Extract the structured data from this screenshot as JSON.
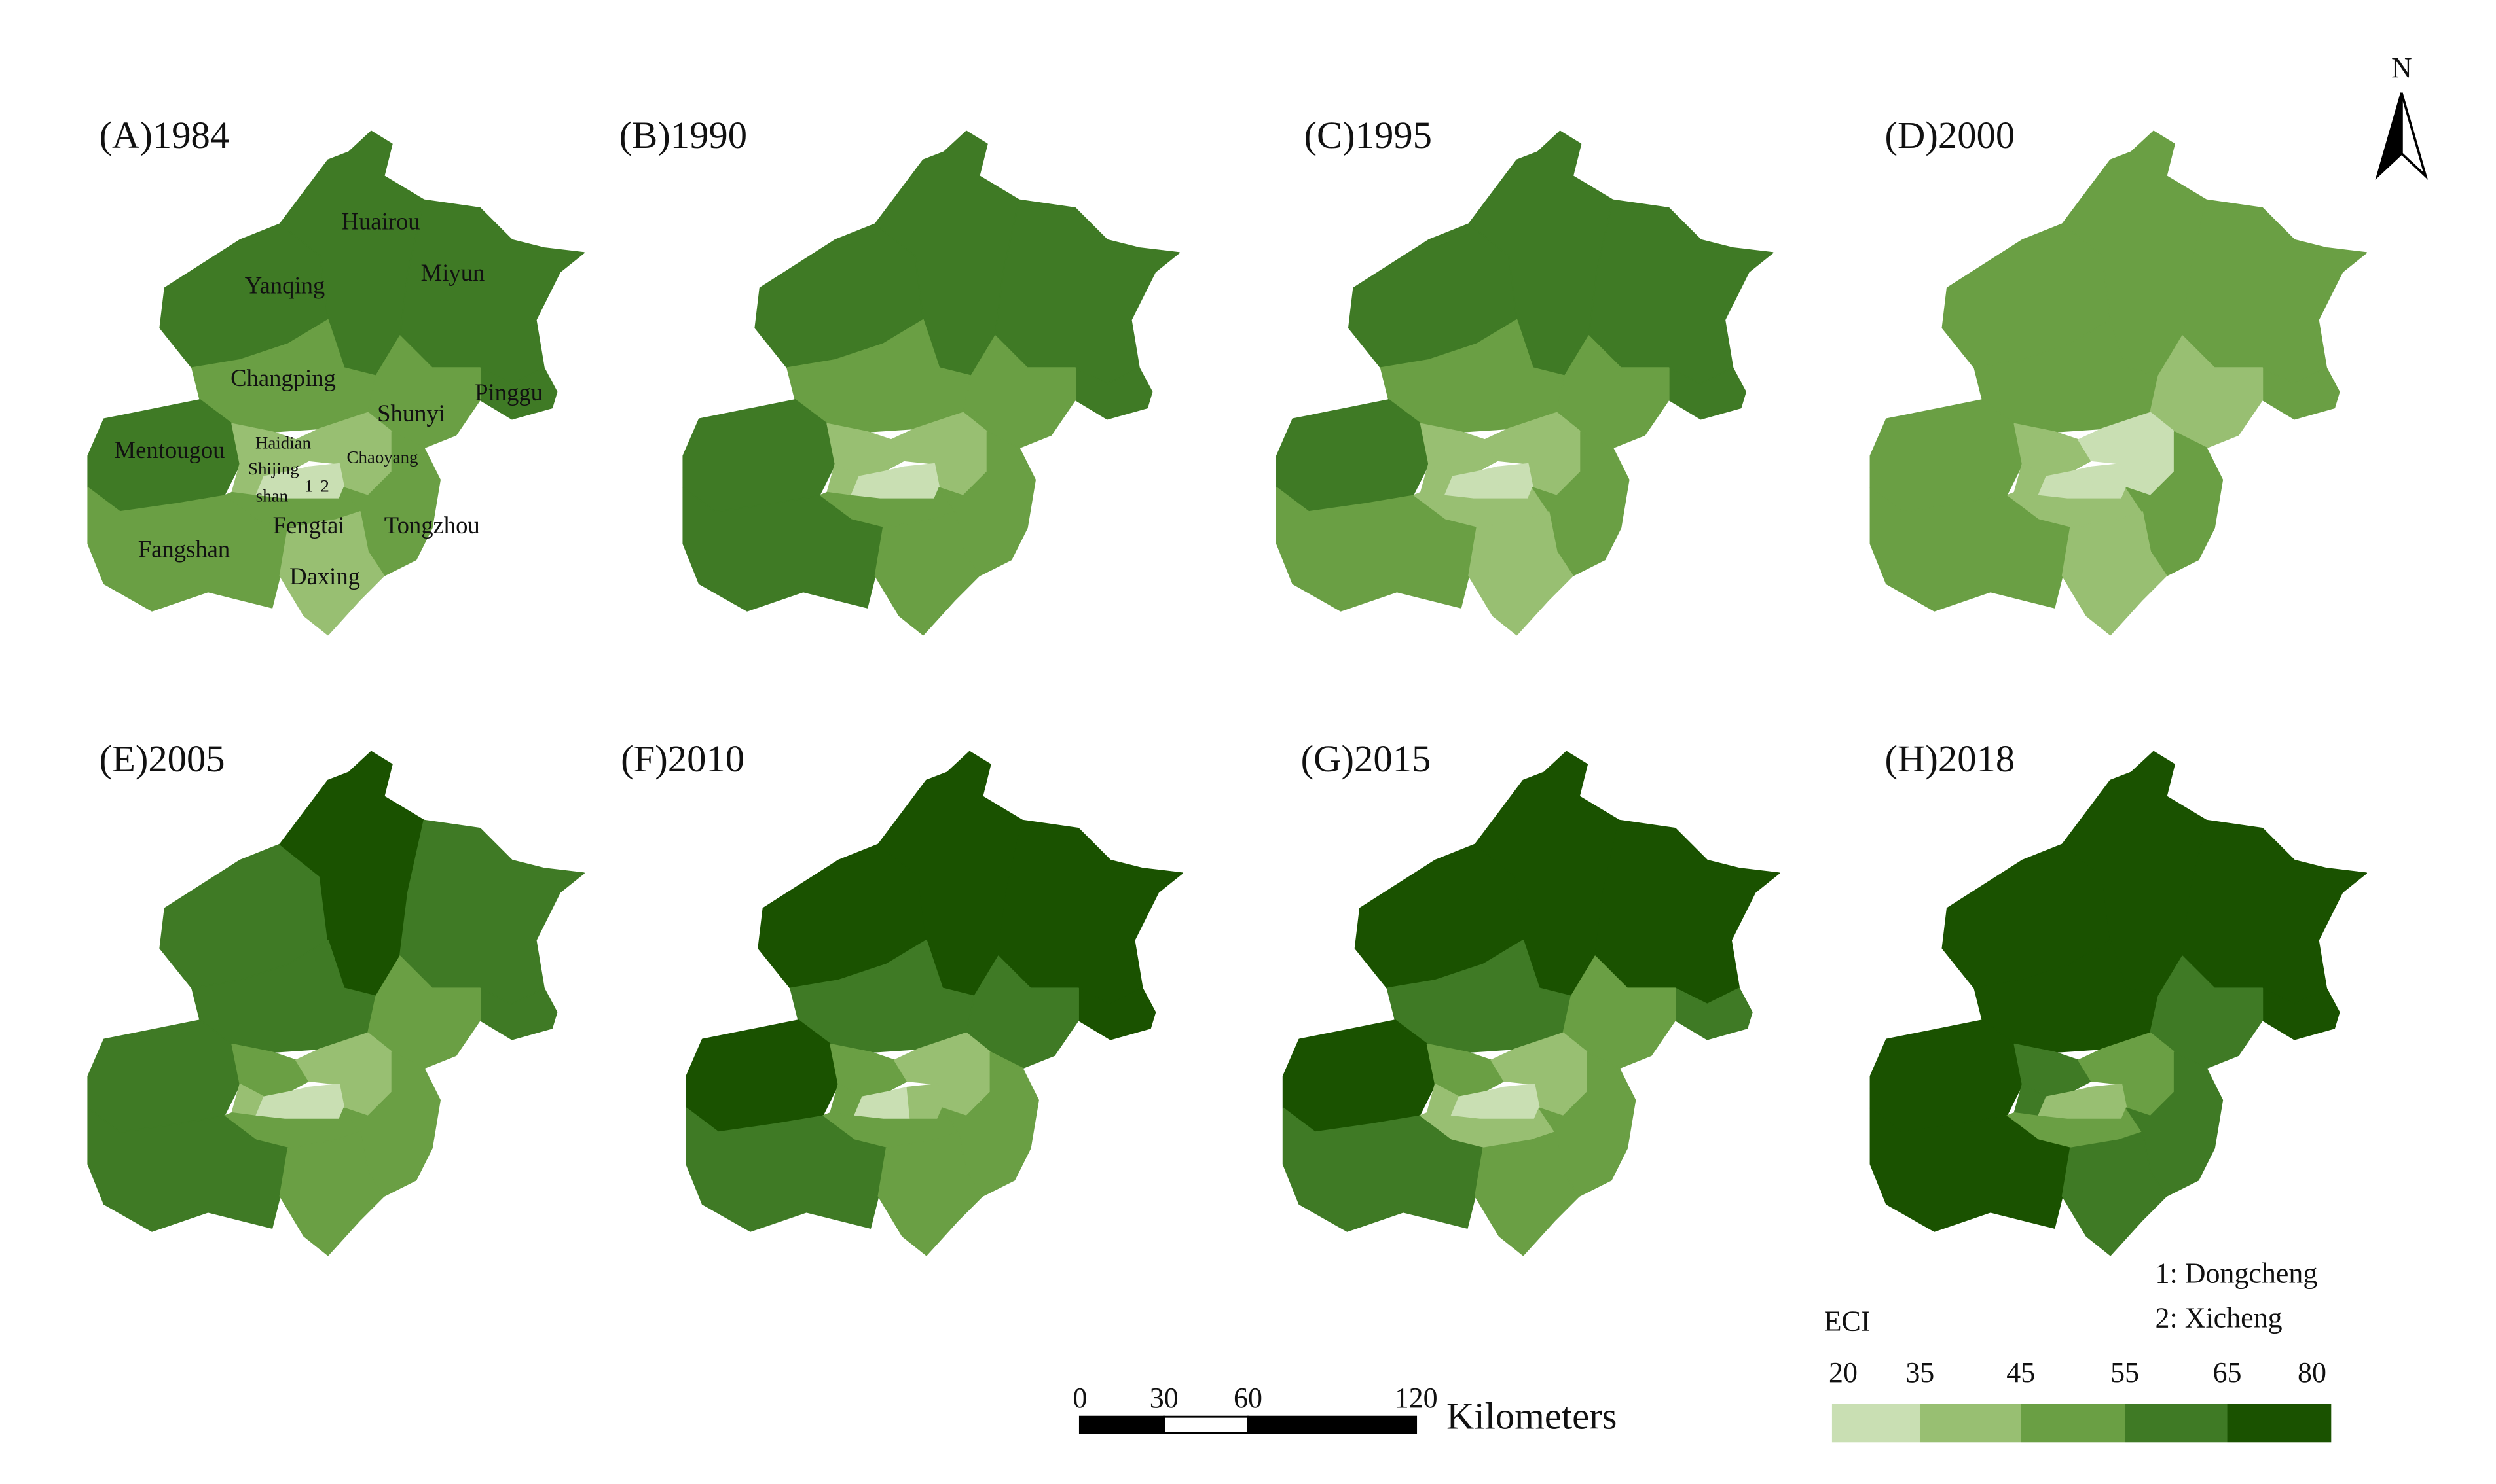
{
  "panels": [
    {
      "title": "(A)1984",
      "fills": [
        "#3f7a25",
        "#3f7a25",
        "#3f7a25",
        "#3f7a25",
        "#6a9f44",
        "#6a9f44",
        "#3f7a25",
        "#98bf72",
        "#98bf72",
        "#98bf72",
        "#c9dfb3",
        "#c9dfb3",
        "#6a9f44",
        "#6a9f44",
        "#6a9f44",
        "#98bf72"
      ],
      "district_labels": [
        "Yanqing",
        "Huairou",
        "Miyun",
        "Pinggu",
        "Changping",
        "Shunyi",
        "Mentougou",
        "Haidian",
        "Chaoyang",
        "Shijing",
        "shan",
        "1",
        "2",
        "Fengtai",
        "Tongzhou",
        "Fangshan",
        "Daxing"
      ]
    },
    {
      "title": "(B)1990",
      "fills": [
        "#3f7a25",
        "#3f7a25",
        "#3f7a25",
        "#3f7a25",
        "#6a9f44",
        "#6a9f44",
        "#3f7a25",
        "#98bf72",
        "#98bf72",
        "#98bf72",
        "#c9dfb3",
        "#c9dfb3",
        "#6a9f44",
        "#6a9f44",
        "#3f7a25",
        "#6a9f44"
      ]
    },
    {
      "title": "(C)1995",
      "fills": [
        "#3f7a25",
        "#3f7a25",
        "#3f7a25",
        "#3f7a25",
        "#6a9f44",
        "#6a9f44",
        "#3f7a25",
        "#98bf72",
        "#98bf72",
        "#98bf72",
        "#c9dfb3",
        "#c9dfb3",
        "#98bf72",
        "#6a9f44",
        "#6a9f44",
        "#98bf72"
      ]
    },
    {
      "title": "(D)2000",
      "fills": [
        "#6a9f44",
        "#6a9f44",
        "#6a9f44",
        "#6a9f44",
        "#6a9f44",
        "#98bf72",
        "#6a9f44",
        "#98bf72",
        "#c9dfb3",
        "#98bf72",
        "#c9dfb3",
        "#c9dfb3",
        "#98bf72",
        "#6a9f44",
        "#6a9f44",
        "#98bf72"
      ]
    },
    {
      "title": "(E)2005",
      "fills": [
        "#3f7a25",
        "#1a5200",
        "#3f7a25",
        "#3f7a25",
        "#3f7a25",
        "#6a9f44",
        "#3f7a25",
        "#6a9f44",
        "#98bf72",
        "#98bf72",
        "#c9dfb3",
        "#c9dfb3",
        "#6a9f44",
        "#6a9f44",
        "#3f7a25",
        "#6a9f44"
      ]
    },
    {
      "title": "(F)2010",
      "fills": [
        "#1a5200",
        "#1a5200",
        "#1a5200",
        "#1a5200",
        "#3f7a25",
        "#3f7a25",
        "#1a5200",
        "#6a9f44",
        "#98bf72",
        "#6a9f44",
        "#c9dfb3",
        "#98bf72",
        "#6a9f44",
        "#6a9f44",
        "#3f7a25",
        "#6a9f44"
      ]
    },
    {
      "title": "(G)2015",
      "fills": [
        "#1a5200",
        "#1a5200",
        "#1a5200",
        "#3f7a25",
        "#3f7a25",
        "#6a9f44",
        "#1a5200",
        "#6a9f44",
        "#98bf72",
        "#98bf72",
        "#c9dfb3",
        "#c9dfb3",
        "#98bf72",
        "#6a9f44",
        "#3f7a25",
        "#6a9f44"
      ]
    },
    {
      "title": "(H)2018",
      "fills": [
        "#1a5200",
        "#1a5200",
        "#1a5200",
        "#1a5200",
        "#1a5200",
        "#3f7a25",
        "#1a5200",
        "#3f7a25",
        "#6a9f44",
        "#3f7a25",
        "#98bf72",
        "#98bf72",
        "#6a9f44",
        "#3f7a25",
        "#1a5200",
        "#3f7a25"
      ]
    }
  ],
  "north": "N",
  "scale_bar": {
    "ticks": [
      0,
      30,
      60,
      120
    ],
    "unit": "Kilometers"
  },
  "notes": [
    "1: Dongcheng",
    "2: Xicheng"
  ],
  "legend": {
    "title": "ECI",
    "breaks": [
      20,
      35,
      45,
      55,
      65,
      80
    ],
    "colors": [
      "#c9dfb3",
      "#98bf72",
      "#6a9f44",
      "#3f7a25",
      "#1a5200"
    ]
  }
}
